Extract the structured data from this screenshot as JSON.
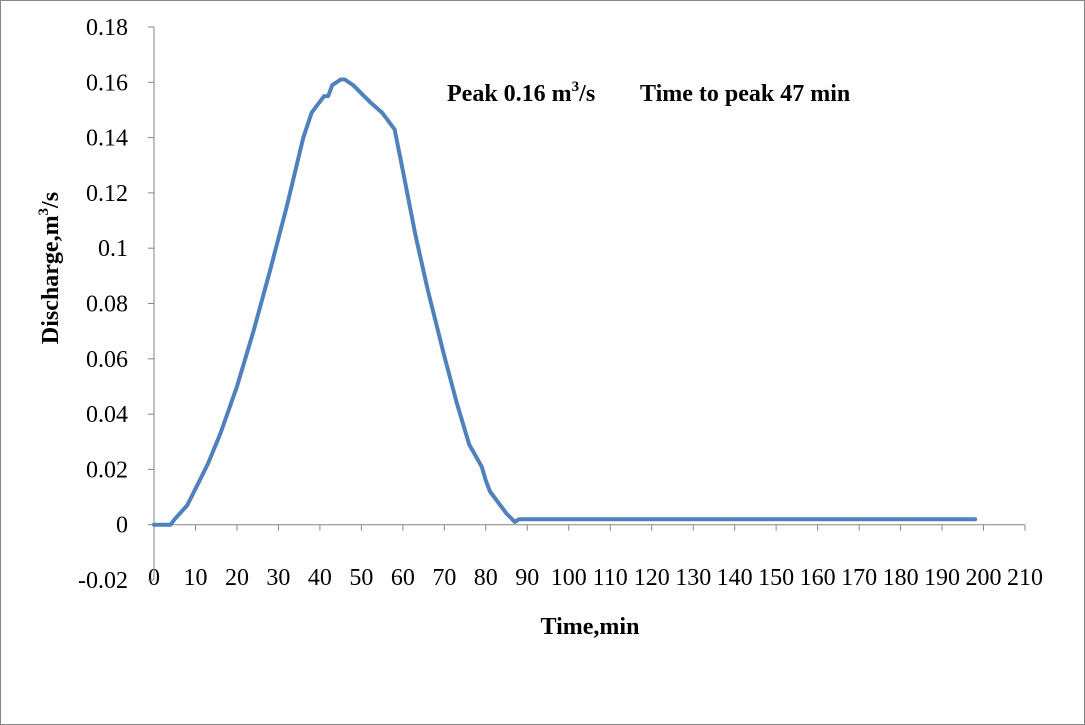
{
  "chart_data": {
    "type": "line",
    "title": "",
    "xlabel": "Time,min",
    "ylabel_main": "Discharge,m",
    "ylabel_sup": "3",
    "ylabel_tail": "/s",
    "annotation": {
      "peak_main": "Peak 0.16 m",
      "peak_sup": "3",
      "peak_tail": "/s",
      "time_text": "Time to peak 47 min"
    },
    "xlim": [
      0,
      210
    ],
    "ylim": [
      -0.02,
      0.18
    ],
    "x_ticks": [
      "0",
      "10",
      "20",
      "30",
      "40",
      "50",
      "60",
      "70",
      "80",
      "90",
      "100",
      "110",
      "120",
      "130",
      "140",
      "150",
      "160",
      "170",
      "180",
      "190",
      "200",
      "210"
    ],
    "y_ticks": [
      "-0.02",
      "0",
      "0.02",
      "0.04",
      "0.06",
      "0.08",
      "0.1",
      "0.12",
      "0.14",
      "0.16",
      "0.18"
    ],
    "grid": false,
    "legend": "none",
    "series": [
      {
        "color": "#4f81bd",
        "x": [
          0,
          4,
          5,
          8,
          10,
          13,
          16,
          20,
          24,
          28,
          32,
          36,
          38,
          40,
          41,
          42,
          43,
          44,
          45,
          46,
          48,
          50,
          52,
          55,
          56,
          57,
          58,
          60,
          63,
          66,
          70,
          73,
          76,
          79,
          80,
          81,
          83,
          85,
          87,
          88,
          100,
          150,
          198
        ],
        "y": [
          0,
          0,
          0.002,
          0.007,
          0.013,
          0.022,
          0.033,
          0.05,
          0.07,
          0.092,
          0.115,
          0.14,
          0.149,
          0.153,
          0.155,
          0.155,
          0.159,
          0.16,
          0.161,
          0.161,
          0.159,
          0.156,
          0.153,
          0.149,
          0.147,
          0.145,
          0.143,
          0.128,
          0.105,
          0.085,
          0.061,
          0.044,
          0.029,
          0.021,
          0.016,
          0.012,
          0.008,
          0.004,
          0.001,
          0.002,
          0.002,
          0.002,
          0.002
        ]
      }
    ]
  }
}
